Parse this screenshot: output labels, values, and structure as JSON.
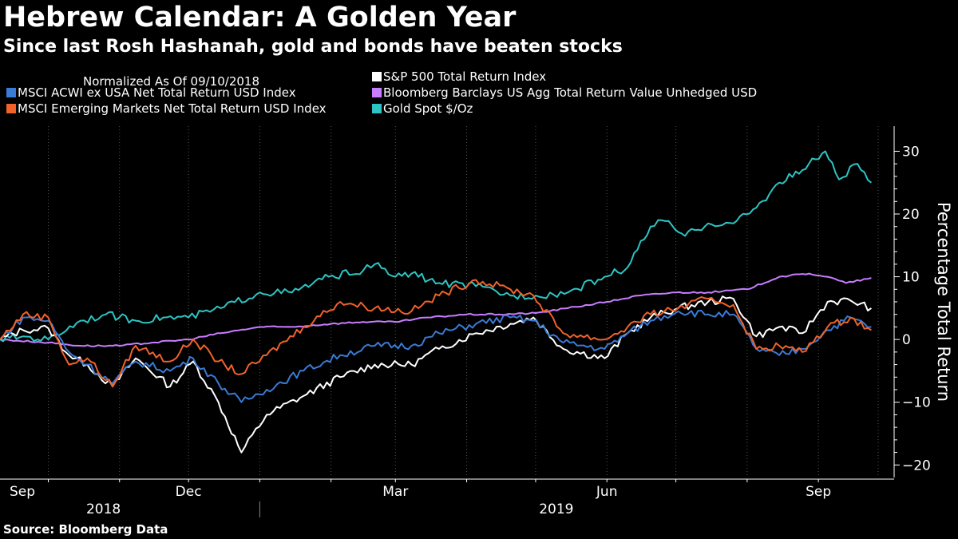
{
  "title": "Hebrew Calendar: A Golden Year",
  "subtitle": "Since last Rosh Hashanah, gold and bonds have beaten stocks",
  "source": "Source: Bloomberg Data",
  "chart_data": {
    "type": "line",
    "legend_header": "Normalized As Of 09/10/2018",
    "ylabel": "Percentage Total Return",
    "ylim": [
      -22,
      34
    ],
    "yticks": [
      -20,
      -10,
      0,
      10,
      20,
      30
    ],
    "xlim": [
      "2018-09-10",
      "2019-09-27"
    ],
    "xticks": [
      {
        "label": "Sep",
        "date": "2018-09-10"
      },
      {
        "label": "Dec",
        "date": "2018-12-01"
      },
      {
        "label": "Mar",
        "date": "2019-03-01"
      },
      {
        "label": "Jun",
        "date": "2019-06-01"
      },
      {
        "label": "Sep",
        "date": "2019-09-01"
      }
    ],
    "years": [
      {
        "label": "2018",
        "date": "2018-10-25"
      },
      {
        "label": "2019",
        "date": "2019-05-10"
      }
    ],
    "legend_position": "top-left",
    "grid": "vertical-dotted",
    "series": [
      {
        "name": "S&P 500 Total Return Index",
        "color": "#ffffff",
        "points": [
          [
            "2018-09-10",
            0
          ],
          [
            "2018-09-20",
            1.5
          ],
          [
            "2018-10-01",
            1.8
          ],
          [
            "2018-10-10",
            -2.5
          ],
          [
            "2018-10-18",
            -4
          ],
          [
            "2018-10-29",
            -7.5
          ],
          [
            "2018-11-08",
            -3
          ],
          [
            "2018-11-23",
            -7.5
          ],
          [
            "2018-12-03",
            -3.5
          ],
          [
            "2018-12-14",
            -10
          ],
          [
            "2018-12-24",
            -18
          ],
          [
            "2019-01-04",
            -12
          ],
          [
            "2019-01-20",
            -9
          ],
          [
            "2019-02-05",
            -6
          ],
          [
            "2019-02-20",
            -4
          ],
          [
            "2019-03-08",
            -4
          ],
          [
            "2019-03-20",
            -1.5
          ],
          [
            "2019-04-05",
            1
          ],
          [
            "2019-04-20",
            2.5
          ],
          [
            "2019-04-30",
            3.5
          ],
          [
            "2019-05-13",
            -1.5
          ],
          [
            "2019-05-31",
            -3
          ],
          [
            "2019-06-10",
            1
          ],
          [
            "2019-06-20",
            3.5
          ],
          [
            "2019-07-02",
            5
          ],
          [
            "2019-07-15",
            6
          ],
          [
            "2019-07-26",
            6.5
          ],
          [
            "2019-08-05",
            0.5
          ],
          [
            "2019-08-15",
            2
          ],
          [
            "2019-08-25",
            1
          ],
          [
            "2019-09-05",
            6
          ],
          [
            "2019-09-15",
            6.2
          ],
          [
            "2019-09-24",
            5
          ]
        ]
      },
      {
        "name": "MSCI ACWI ex USA Net Total Return USD Index",
        "color": "#3a7bd5",
        "points": [
          [
            "2018-09-10",
            0
          ],
          [
            "2018-09-20",
            3.5
          ],
          [
            "2018-10-01",
            3
          ],
          [
            "2018-10-10",
            -2
          ],
          [
            "2018-10-18",
            -4
          ],
          [
            "2018-10-29",
            -7
          ],
          [
            "2018-11-08",
            -3.5
          ],
          [
            "2018-11-23",
            -5
          ],
          [
            "2018-12-03",
            -3
          ],
          [
            "2018-12-14",
            -7
          ],
          [
            "2018-12-24",
            -10
          ],
          [
            "2019-01-04",
            -8
          ],
          [
            "2019-01-20",
            -5
          ],
          [
            "2019-02-05",
            -2.5
          ],
          [
            "2019-02-20",
            -1
          ],
          [
            "2019-03-08",
            -1
          ],
          [
            "2019-03-20",
            1
          ],
          [
            "2019-04-05",
            2.5
          ],
          [
            "2019-04-20",
            3.5
          ],
          [
            "2019-04-30",
            3
          ],
          [
            "2019-05-13",
            -0.5
          ],
          [
            "2019-05-31",
            -1.5
          ],
          [
            "2019-06-10",
            1
          ],
          [
            "2019-06-20",
            3
          ],
          [
            "2019-07-02",
            4.5
          ],
          [
            "2019-07-15",
            4
          ],
          [
            "2019-07-26",
            4
          ],
          [
            "2019-08-05",
            -1.5
          ],
          [
            "2019-08-15",
            -2.5
          ],
          [
            "2019-08-25",
            -1.5
          ],
          [
            "2019-09-05",
            1.5
          ],
          [
            "2019-09-15",
            3.5
          ],
          [
            "2019-09-24",
            2
          ]
        ]
      },
      {
        "name": "MSCI Emerging Markets Net Total Return USD Index",
        "color": "#f0622a",
        "points": [
          [
            "2018-09-10",
            0
          ],
          [
            "2018-09-20",
            4
          ],
          [
            "2018-10-01",
            3.5
          ],
          [
            "2018-10-10",
            -4
          ],
          [
            "2018-10-18",
            -3
          ],
          [
            "2018-10-29",
            -7.5
          ],
          [
            "2018-11-08",
            -1
          ],
          [
            "2018-11-23",
            -3.5
          ],
          [
            "2018-12-03",
            0
          ],
          [
            "2018-12-14",
            -3.5
          ],
          [
            "2018-12-24",
            -5.5
          ],
          [
            "2019-01-04",
            -2.5
          ],
          [
            "2019-01-20",
            2
          ],
          [
            "2019-02-05",
            6
          ],
          [
            "2019-02-20",
            5
          ],
          [
            "2019-03-08",
            4.5
          ],
          [
            "2019-03-20",
            7
          ],
          [
            "2019-04-05",
            9.5
          ],
          [
            "2019-04-20",
            8
          ],
          [
            "2019-04-30",
            7
          ],
          [
            "2019-05-13",
            1
          ],
          [
            "2019-05-31",
            0
          ],
          [
            "2019-06-10",
            2
          ],
          [
            "2019-06-20",
            4
          ],
          [
            "2019-07-02",
            5
          ],
          [
            "2019-07-15",
            6.5
          ],
          [
            "2019-07-26",
            5.5
          ],
          [
            "2019-08-05",
            -1.5
          ],
          [
            "2019-08-15",
            -1
          ],
          [
            "2019-08-25",
            -2
          ],
          [
            "2019-09-05",
            2
          ],
          [
            "2019-09-15",
            3.5
          ],
          [
            "2019-09-24",
            1.5
          ]
        ]
      },
      {
        "name": "Bloomberg Barclays US Agg Total Return Value Unhedged USD",
        "color": "#c77dff",
        "points": [
          [
            "2018-09-10",
            0
          ],
          [
            "2018-10-01",
            -0.5
          ],
          [
            "2018-10-15",
            -1
          ],
          [
            "2018-11-01",
            -1
          ],
          [
            "2018-11-15",
            -0.5
          ],
          [
            "2018-12-01",
            0
          ],
          [
            "2018-12-15",
            1
          ],
          [
            "2019-01-01",
            2
          ],
          [
            "2019-01-15",
            2
          ],
          [
            "2019-02-01",
            2.5
          ],
          [
            "2019-02-15",
            2.8
          ],
          [
            "2019-03-01",
            2.8
          ],
          [
            "2019-03-15",
            3.5
          ],
          [
            "2019-04-01",
            4
          ],
          [
            "2019-04-15",
            4
          ],
          [
            "2019-05-01",
            4.2
          ],
          [
            "2019-05-15",
            5
          ],
          [
            "2019-06-01",
            6
          ],
          [
            "2019-06-15",
            7
          ],
          [
            "2019-07-01",
            7.5
          ],
          [
            "2019-07-15",
            7.5
          ],
          [
            "2019-08-01",
            8
          ],
          [
            "2019-08-15",
            10
          ],
          [
            "2019-08-28",
            10.5
          ],
          [
            "2019-09-05",
            10
          ],
          [
            "2019-09-13",
            9
          ],
          [
            "2019-09-24",
            9.8
          ]
        ]
      },
      {
        "name": "Gold Spot $/Oz",
        "color": "#2ec4c4",
        "points": [
          [
            "2018-09-10",
            0
          ],
          [
            "2018-09-20",
            0.5
          ],
          [
            "2018-10-01",
            0
          ],
          [
            "2018-10-15",
            3
          ],
          [
            "2018-10-26",
            4
          ],
          [
            "2018-11-08",
            3
          ],
          [
            "2018-11-20",
            3.5
          ],
          [
            "2018-12-01",
            3.5
          ],
          [
            "2018-12-15",
            5
          ],
          [
            "2019-01-01",
            7.5
          ],
          [
            "2019-01-15",
            7.5
          ],
          [
            "2019-01-31",
            10
          ],
          [
            "2019-02-15",
            11
          ],
          [
            "2019-02-20",
            12
          ],
          [
            "2019-03-01",
            10
          ],
          [
            "2019-03-08",
            10.5
          ],
          [
            "2019-03-20",
            9
          ],
          [
            "2019-04-05",
            8.5
          ],
          [
            "2019-04-20",
            7
          ],
          [
            "2019-05-01",
            7
          ],
          [
            "2019-05-15",
            7.5
          ],
          [
            "2019-05-31",
            10
          ],
          [
            "2019-06-10",
            11.5
          ],
          [
            "2019-06-20",
            18
          ],
          [
            "2019-06-25",
            19
          ],
          [
            "2019-07-05",
            16.5
          ],
          [
            "2019-07-15",
            18.5
          ],
          [
            "2019-07-26",
            18.5
          ],
          [
            "2019-08-05",
            21
          ],
          [
            "2019-08-15",
            25
          ],
          [
            "2019-08-25",
            27
          ],
          [
            "2019-09-04",
            30
          ],
          [
            "2019-09-10",
            25.5
          ],
          [
            "2019-09-18",
            28
          ],
          [
            "2019-09-24",
            25
          ]
        ]
      }
    ]
  }
}
